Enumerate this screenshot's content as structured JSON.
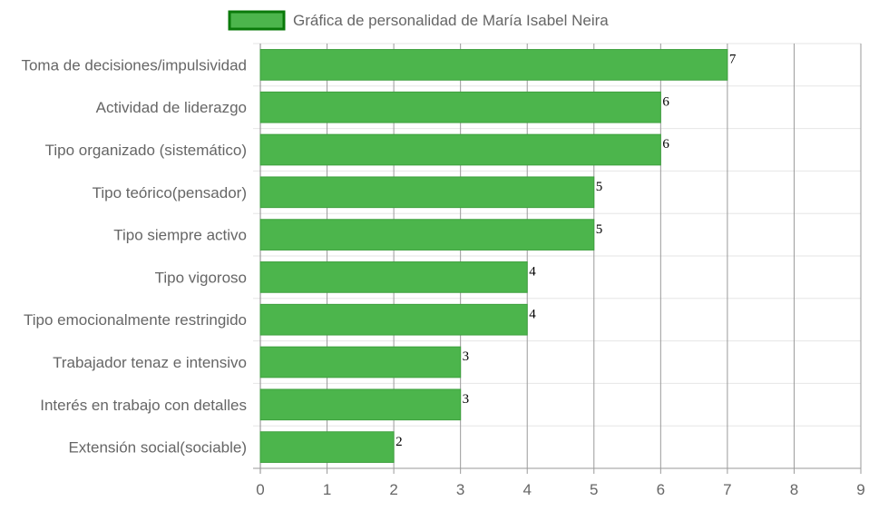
{
  "chart_data": {
    "type": "bar",
    "orientation": "horizontal",
    "categories": [
      "Toma de decisiones/impulsividad",
      "Actividad de liderazgo",
      "Tipo organizado (sistemático)",
      "Tipo teórico(pensador)",
      "Tipo siempre activo",
      "Tipo vigoroso",
      "Tipo emocionalmente restringido",
      "Trabajador tenaz e intensivo",
      "Interés en trabajo con detalles",
      "Extensión social(sociable)"
    ],
    "series": [
      {
        "name": "Gráfica de personalidad de María Isabel Neira",
        "values": [
          7,
          6,
          6,
          5,
          5,
          4,
          4,
          3,
          3,
          2
        ]
      }
    ],
    "xlim": [
      0,
      9
    ],
    "xticks": [
      "0",
      "1",
      "2",
      "3",
      "4",
      "5",
      "6",
      "7",
      "8",
      "9"
    ],
    "grid": true,
    "legend": "top-center",
    "bar_color": "#4cb54c",
    "bar_border_color": "#3da03d",
    "legend_border_color": "#0a7a0a"
  }
}
